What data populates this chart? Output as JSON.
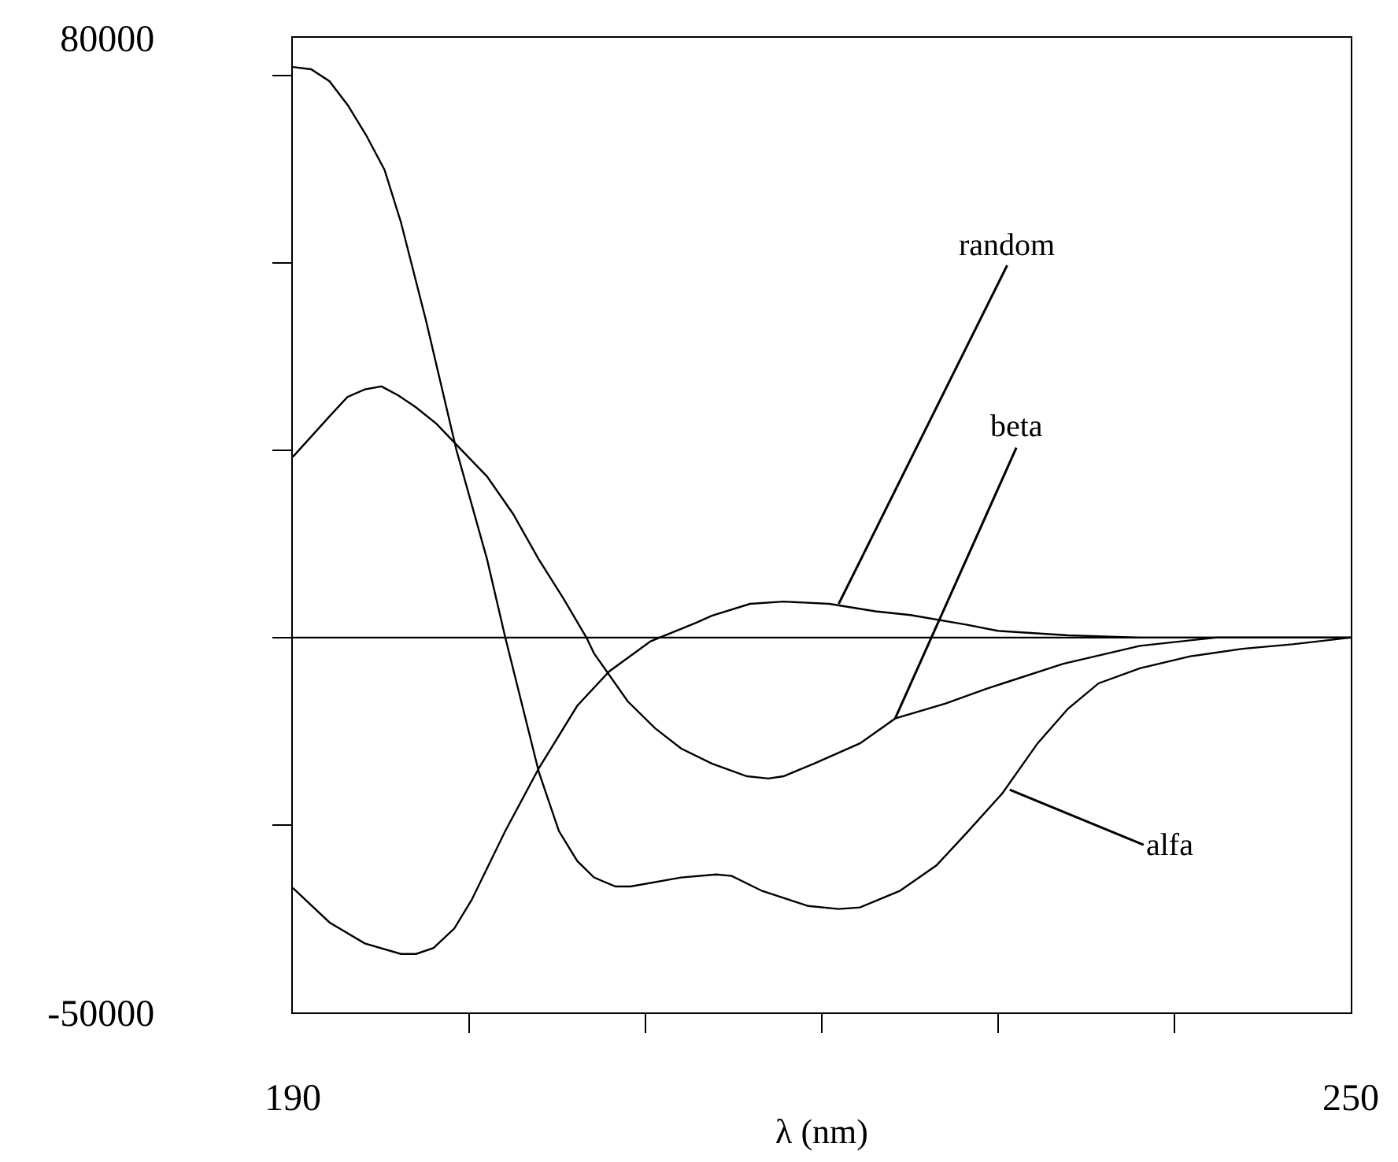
{
  "chart_data": {
    "type": "line",
    "xlabel": "λ (nm)",
    "xlim": [
      190,
      250
    ],
    "xticks": [
      {
        "value": 190,
        "label": "190"
      },
      {
        "value": 200,
        "label": null
      },
      {
        "value": 210,
        "label": null
      },
      {
        "value": 220,
        "label": null
      },
      {
        "value": 230,
        "label": null
      },
      {
        "value": 240,
        "label": null
      },
      {
        "value": 250,
        "label": "250"
      }
    ],
    "ylim": [
      -50000,
      80000
    ],
    "yticks": [
      {
        "value": -50000,
        "label": "-50000"
      },
      {
        "value": -25000,
        "label": null
      },
      {
        "value": 0,
        "label": null
      },
      {
        "value": 25000,
        "label": null
      },
      {
        "value": 50000,
        "label": null
      },
      {
        "value": 75000,
        "label": null
      },
      {
        "value": 80000,
        "label": "80000"
      }
    ],
    "series": [
      {
        "color": "#000000",
        "x": [
          190,
          191.04,
          192.08,
          193.12,
          194.16,
          195.2,
          196.13,
          197.54,
          199.28,
          201.01,
          202.05,
          203.96,
          205.09,
          206.13,
          207.08,
          208.3,
          209.16,
          212.02,
          214.02,
          214.89,
          216.62,
          219.22,
          220.96,
          222.17,
          224.42,
          226.5,
          228.24,
          230.23,
          232.24,
          233.96,
          235.7,
          238.04,
          240.9,
          243.85,
          246.7,
          250
        ],
        "values": [
          76100,
          75800,
          74200,
          71000,
          67000,
          62400,
          55400,
          42400,
          25000,
          10500,
          0,
          -18000,
          -25800,
          -29800,
          -32000,
          -33200,
          -33200,
          -32000,
          -31600,
          -31800,
          -33800,
          -35800,
          -36200,
          -36000,
          -33800,
          -30400,
          -26000,
          -20800,
          -14100,
          -9500,
          -6100,
          -4100,
          -2500,
          -1500,
          -900,
          0
        ]
      },
      {
        "color": "#000000",
        "x": [
          190,
          192.08,
          193.1,
          194.08,
          195.03,
          195.98,
          196.99,
          198.15,
          199.45,
          201.01,
          202.49,
          203.93,
          205.35,
          206.65,
          207.08,
          208.99,
          210.55,
          212.02,
          213.76,
          215.75,
          216.97,
          217.83,
          219.57,
          222.17,
          224.16,
          227.02,
          229.37,
          233.7,
          238.04,
          242.37,
          250
        ],
        "values": [
          24100,
          29500,
          32100,
          33100,
          33500,
          32300,
          30700,
          28500,
          25300,
          21500,
          16500,
          10500,
          5200,
          0,
          -2100,
          -8500,
          -12100,
          -14800,
          -16800,
          -18500,
          -18800,
          -18500,
          -16800,
          -14100,
          -10800,
          -8800,
          -6800,
          -3500,
          -1100,
          0,
          0
        ]
      },
      {
        "color": "#000000",
        "x": [
          190,
          192.08,
          194.08,
          196.13,
          196.99,
          197.98,
          199.16,
          200.14,
          202.05,
          203.96,
          206.13,
          207.95,
          210.29,
          212.89,
          213.76,
          215.93,
          217.83,
          220.43,
          223.04,
          225.03,
          228.24,
          229.97,
          233.96,
          238.04,
          250
        ],
        "values": [
          -33400,
          -38000,
          -40800,
          -42200,
          -42200,
          -41400,
          -38800,
          -35000,
          -25800,
          -17400,
          -9100,
          -4500,
          -500,
          2000,
          2900,
          4500,
          4800,
          4500,
          3500,
          3000,
          1700,
          900,
          300,
          0,
          0
        ]
      }
    ],
    "ref_lines": [
      {
        "axis": "y",
        "value": 0,
        "color": "#000000"
      }
    ],
    "annotations": [
      {
        "text": "random",
        "x": 220.96,
        "y": 4500
      },
      {
        "text": "beta",
        "x": 224.16,
        "y": -10800
      },
      {
        "text": "alfa",
        "x": 230.66,
        "y": -20300
      }
    ],
    "marker": "none",
    "line_style": "solid"
  }
}
